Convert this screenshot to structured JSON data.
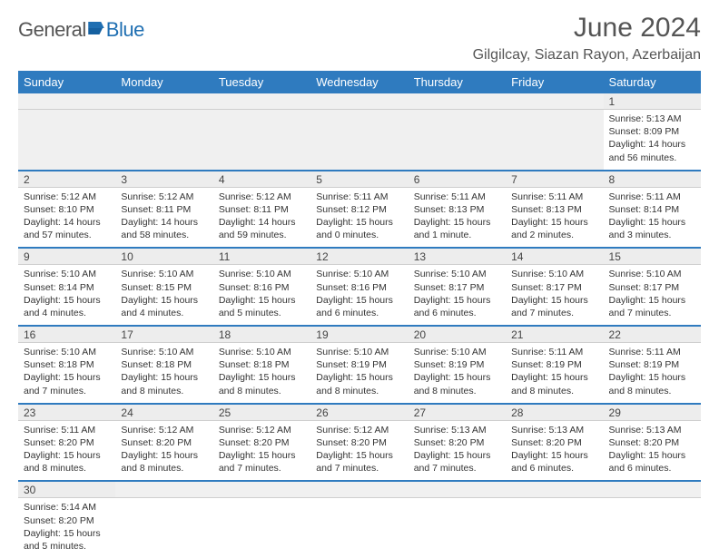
{
  "logo": {
    "text_general": "General",
    "text_blue": "Blue"
  },
  "title": "June 2024",
  "location": "Gilgilcay, Siazan Rayon, Azerbaijan",
  "colors": {
    "header_bg": "#2f7bbf",
    "header_text": "#ffffff",
    "row_divider": "#2f7bbf",
    "shade_bg": "#ededed",
    "shade_border": "#cfcfcf",
    "text": "#333333",
    "title_text": "#555555"
  },
  "days_of_week": [
    "Sunday",
    "Monday",
    "Tuesday",
    "Wednesday",
    "Thursday",
    "Friday",
    "Saturday"
  ],
  "weeks": [
    [
      null,
      null,
      null,
      null,
      null,
      null,
      {
        "n": "1",
        "sr": "Sunrise: 5:13 AM",
        "ss": "Sunset: 8:09 PM",
        "dl1": "Daylight: 14 hours",
        "dl2": "and 56 minutes."
      }
    ],
    [
      {
        "n": "2",
        "sr": "Sunrise: 5:12 AM",
        "ss": "Sunset: 8:10 PM",
        "dl1": "Daylight: 14 hours",
        "dl2": "and 57 minutes."
      },
      {
        "n": "3",
        "sr": "Sunrise: 5:12 AM",
        "ss": "Sunset: 8:11 PM",
        "dl1": "Daylight: 14 hours",
        "dl2": "and 58 minutes."
      },
      {
        "n": "4",
        "sr": "Sunrise: 5:12 AM",
        "ss": "Sunset: 8:11 PM",
        "dl1": "Daylight: 14 hours",
        "dl2": "and 59 minutes."
      },
      {
        "n": "5",
        "sr": "Sunrise: 5:11 AM",
        "ss": "Sunset: 8:12 PM",
        "dl1": "Daylight: 15 hours",
        "dl2": "and 0 minutes."
      },
      {
        "n": "6",
        "sr": "Sunrise: 5:11 AM",
        "ss": "Sunset: 8:13 PM",
        "dl1": "Daylight: 15 hours",
        "dl2": "and 1 minute."
      },
      {
        "n": "7",
        "sr": "Sunrise: 5:11 AM",
        "ss": "Sunset: 8:13 PM",
        "dl1": "Daylight: 15 hours",
        "dl2": "and 2 minutes."
      },
      {
        "n": "8",
        "sr": "Sunrise: 5:11 AM",
        "ss": "Sunset: 8:14 PM",
        "dl1": "Daylight: 15 hours",
        "dl2": "and 3 minutes."
      }
    ],
    [
      {
        "n": "9",
        "sr": "Sunrise: 5:10 AM",
        "ss": "Sunset: 8:14 PM",
        "dl1": "Daylight: 15 hours",
        "dl2": "and 4 minutes."
      },
      {
        "n": "10",
        "sr": "Sunrise: 5:10 AM",
        "ss": "Sunset: 8:15 PM",
        "dl1": "Daylight: 15 hours",
        "dl2": "and 4 minutes."
      },
      {
        "n": "11",
        "sr": "Sunrise: 5:10 AM",
        "ss": "Sunset: 8:16 PM",
        "dl1": "Daylight: 15 hours",
        "dl2": "and 5 minutes."
      },
      {
        "n": "12",
        "sr": "Sunrise: 5:10 AM",
        "ss": "Sunset: 8:16 PM",
        "dl1": "Daylight: 15 hours",
        "dl2": "and 6 minutes."
      },
      {
        "n": "13",
        "sr": "Sunrise: 5:10 AM",
        "ss": "Sunset: 8:17 PM",
        "dl1": "Daylight: 15 hours",
        "dl2": "and 6 minutes."
      },
      {
        "n": "14",
        "sr": "Sunrise: 5:10 AM",
        "ss": "Sunset: 8:17 PM",
        "dl1": "Daylight: 15 hours",
        "dl2": "and 7 minutes."
      },
      {
        "n": "15",
        "sr": "Sunrise: 5:10 AM",
        "ss": "Sunset: 8:17 PM",
        "dl1": "Daylight: 15 hours",
        "dl2": "and 7 minutes."
      }
    ],
    [
      {
        "n": "16",
        "sr": "Sunrise: 5:10 AM",
        "ss": "Sunset: 8:18 PM",
        "dl1": "Daylight: 15 hours",
        "dl2": "and 7 minutes."
      },
      {
        "n": "17",
        "sr": "Sunrise: 5:10 AM",
        "ss": "Sunset: 8:18 PM",
        "dl1": "Daylight: 15 hours",
        "dl2": "and 8 minutes."
      },
      {
        "n": "18",
        "sr": "Sunrise: 5:10 AM",
        "ss": "Sunset: 8:18 PM",
        "dl1": "Daylight: 15 hours",
        "dl2": "and 8 minutes."
      },
      {
        "n": "19",
        "sr": "Sunrise: 5:10 AM",
        "ss": "Sunset: 8:19 PM",
        "dl1": "Daylight: 15 hours",
        "dl2": "and 8 minutes."
      },
      {
        "n": "20",
        "sr": "Sunrise: 5:10 AM",
        "ss": "Sunset: 8:19 PM",
        "dl1": "Daylight: 15 hours",
        "dl2": "and 8 minutes."
      },
      {
        "n": "21",
        "sr": "Sunrise: 5:11 AM",
        "ss": "Sunset: 8:19 PM",
        "dl1": "Daylight: 15 hours",
        "dl2": "and 8 minutes."
      },
      {
        "n": "22",
        "sr": "Sunrise: 5:11 AM",
        "ss": "Sunset: 8:19 PM",
        "dl1": "Daylight: 15 hours",
        "dl2": "and 8 minutes."
      }
    ],
    [
      {
        "n": "23",
        "sr": "Sunrise: 5:11 AM",
        "ss": "Sunset: 8:20 PM",
        "dl1": "Daylight: 15 hours",
        "dl2": "and 8 minutes."
      },
      {
        "n": "24",
        "sr": "Sunrise: 5:12 AM",
        "ss": "Sunset: 8:20 PM",
        "dl1": "Daylight: 15 hours",
        "dl2": "and 8 minutes."
      },
      {
        "n": "25",
        "sr": "Sunrise: 5:12 AM",
        "ss": "Sunset: 8:20 PM",
        "dl1": "Daylight: 15 hours",
        "dl2": "and 7 minutes."
      },
      {
        "n": "26",
        "sr": "Sunrise: 5:12 AM",
        "ss": "Sunset: 8:20 PM",
        "dl1": "Daylight: 15 hours",
        "dl2": "and 7 minutes."
      },
      {
        "n": "27",
        "sr": "Sunrise: 5:13 AM",
        "ss": "Sunset: 8:20 PM",
        "dl1": "Daylight: 15 hours",
        "dl2": "and 7 minutes."
      },
      {
        "n": "28",
        "sr": "Sunrise: 5:13 AM",
        "ss": "Sunset: 8:20 PM",
        "dl1": "Daylight: 15 hours",
        "dl2": "and 6 minutes."
      },
      {
        "n": "29",
        "sr": "Sunrise: 5:13 AM",
        "ss": "Sunset: 8:20 PM",
        "dl1": "Daylight: 15 hours",
        "dl2": "and 6 minutes."
      }
    ],
    [
      {
        "n": "30",
        "sr": "Sunrise: 5:14 AM",
        "ss": "Sunset: 8:20 PM",
        "dl1": "Daylight: 15 hours",
        "dl2": "and 5 minutes."
      },
      null,
      null,
      null,
      null,
      null,
      null
    ]
  ]
}
